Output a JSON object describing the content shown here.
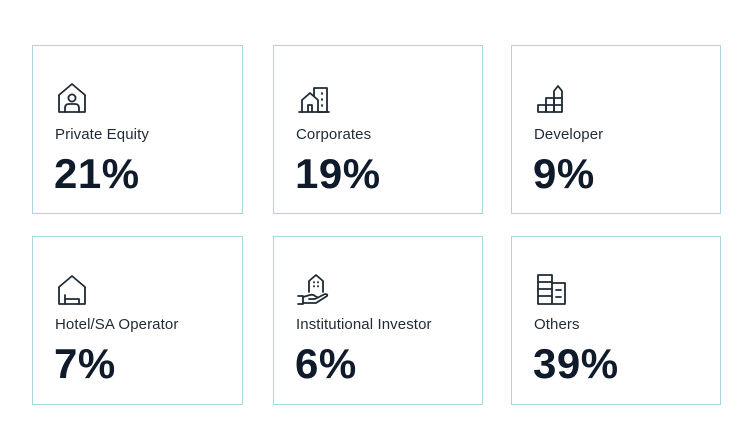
{
  "colors": {
    "card_border": "#a8d6e2",
    "text": "#0f1a2a",
    "background": "#ffffff"
  },
  "cards": [
    {
      "icon": "house-person-icon",
      "label": "Private Equity",
      "value": "21%"
    },
    {
      "icon": "office-buildings-icon",
      "label": "Corporates",
      "value": "19%"
    },
    {
      "icon": "stacked-blocks-icon",
      "label": "Developer",
      "value": "9%"
    },
    {
      "icon": "house-bed-icon",
      "label": "Hotel/SA Operator",
      "value": "7%"
    },
    {
      "icon": "hand-holding-building-icon",
      "label": "Institutional Investor",
      "value": "6%"
    },
    {
      "icon": "stacked-buildings-icon",
      "label": "Others",
      "value": "39%"
    }
  ]
}
